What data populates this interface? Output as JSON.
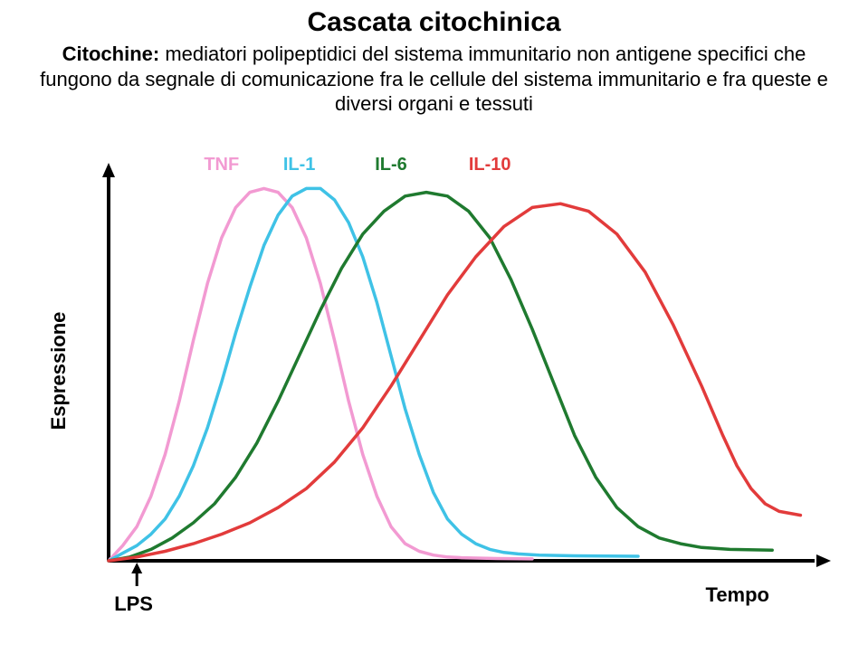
{
  "title": "Cascata citochinica",
  "subtitle_bold": "Citochine:",
  "subtitle_rest": " mediatori polipeptidici del sistema immunitario non antigene specifici che fungono da segnale di comunicazione fra le cellule del sistema immunitario e fra queste e diversi organi e tessuti",
  "chart": {
    "type": "line",
    "background_color": "#ffffff",
    "axis_color": "#000000",
    "axis_width": 4,
    "xlabel": "Tempo",
    "ylabel": "Espressione",
    "lps_label": "LPS",
    "label_fontsize": 22,
    "legend_fontsize": 20,
    "xlim": [
      0,
      100
    ],
    "ylim": [
      0,
      100
    ],
    "series": [
      {
        "name": "TNF",
        "color": "#f29ad2",
        "width": 3.5,
        "points": [
          [
            0,
            0
          ],
          [
            2,
            4
          ],
          [
            4,
            9
          ],
          [
            6,
            17
          ],
          [
            8,
            28
          ],
          [
            10,
            42
          ],
          [
            12,
            58
          ],
          [
            14,
            73
          ],
          [
            16,
            85
          ],
          [
            18,
            93
          ],
          [
            20,
            97
          ],
          [
            22,
            98
          ],
          [
            24,
            97
          ],
          [
            26,
            93
          ],
          [
            28,
            85
          ],
          [
            30,
            73
          ],
          [
            32,
            58
          ],
          [
            34,
            42
          ],
          [
            36,
            28
          ],
          [
            38,
            17
          ],
          [
            40,
            9
          ],
          [
            42,
            4.5
          ],
          [
            44,
            2.5
          ],
          [
            46,
            1.5
          ],
          [
            48,
            1
          ],
          [
            50,
            0.8
          ],
          [
            55,
            0.6
          ],
          [
            60,
            0.5
          ]
        ]
      },
      {
        "name": "IL-1",
        "color": "#3fc2e6",
        "width": 3.5,
        "points": [
          [
            0,
            0
          ],
          [
            2,
            2
          ],
          [
            4,
            4
          ],
          [
            6,
            7
          ],
          [
            8,
            11
          ],
          [
            10,
            17
          ],
          [
            12,
            25
          ],
          [
            14,
            35
          ],
          [
            16,
            47
          ],
          [
            18,
            60
          ],
          [
            20,
            72
          ],
          [
            22,
            83
          ],
          [
            24,
            91
          ],
          [
            26,
            96
          ],
          [
            28,
            98
          ],
          [
            30,
            98
          ],
          [
            32,
            95
          ],
          [
            34,
            89
          ],
          [
            36,
            80
          ],
          [
            38,
            68
          ],
          [
            40,
            54
          ],
          [
            42,
            40
          ],
          [
            44,
            28
          ],
          [
            46,
            18
          ],
          [
            48,
            11
          ],
          [
            50,
            7
          ],
          [
            52,
            4.5
          ],
          [
            54,
            3
          ],
          [
            56,
            2.2
          ],
          [
            58,
            1.8
          ],
          [
            61,
            1.5
          ],
          [
            66,
            1.3
          ],
          [
            75,
            1.2
          ]
        ]
      },
      {
        "name": "IL-6",
        "color": "#1f7a2f",
        "width": 3.5,
        "points": [
          [
            0,
            0
          ],
          [
            3,
            1
          ],
          [
            6,
            3
          ],
          [
            9,
            6
          ],
          [
            12,
            10
          ],
          [
            15,
            15
          ],
          [
            18,
            22
          ],
          [
            21,
            31
          ],
          [
            24,
            42
          ],
          [
            27,
            54
          ],
          [
            30,
            66
          ],
          [
            33,
            77
          ],
          [
            36,
            86
          ],
          [
            39,
            92
          ],
          [
            42,
            96
          ],
          [
            45,
            97
          ],
          [
            48,
            96
          ],
          [
            51,
            92
          ],
          [
            54,
            85
          ],
          [
            57,
            74
          ],
          [
            60,
            61
          ],
          [
            63,
            47
          ],
          [
            66,
            33
          ],
          [
            69,
            22
          ],
          [
            72,
            14
          ],
          [
            75,
            9
          ],
          [
            78,
            6
          ],
          [
            81,
            4.5
          ],
          [
            84,
            3.5
          ],
          [
            88,
            3
          ],
          [
            94,
            2.8
          ]
        ]
      },
      {
        "name": "IL-10",
        "color": "#e23b3b",
        "width": 3.5,
        "points": [
          [
            0,
            0
          ],
          [
            4,
            1
          ],
          [
            8,
            2.5
          ],
          [
            12,
            4.5
          ],
          [
            16,
            7
          ],
          [
            20,
            10
          ],
          [
            24,
            14
          ],
          [
            28,
            19
          ],
          [
            32,
            26
          ],
          [
            36,
            35
          ],
          [
            40,
            46
          ],
          [
            44,
            58
          ],
          [
            48,
            70
          ],
          [
            52,
            80
          ],
          [
            56,
            88
          ],
          [
            60,
            93
          ],
          [
            64,
            94
          ],
          [
            68,
            92
          ],
          [
            72,
            86
          ],
          [
            76,
            76
          ],
          [
            80,
            62
          ],
          [
            84,
            46
          ],
          [
            87,
            33
          ],
          [
            89,
            25
          ],
          [
            91,
            19
          ],
          [
            93,
            15
          ],
          [
            95,
            13
          ],
          [
            98,
            12
          ]
        ]
      }
    ],
    "legend": [
      {
        "name": "TNF",
        "color": "#f29ad2",
        "x": 16
      },
      {
        "name": "IL-1",
        "color": "#3fc2e6",
        "x": 27
      },
      {
        "name": "IL-6",
        "color": "#1f7a2f",
        "x": 40
      },
      {
        "name": "IL-10",
        "color": "#e23b3b",
        "x": 54
      }
    ]
  }
}
